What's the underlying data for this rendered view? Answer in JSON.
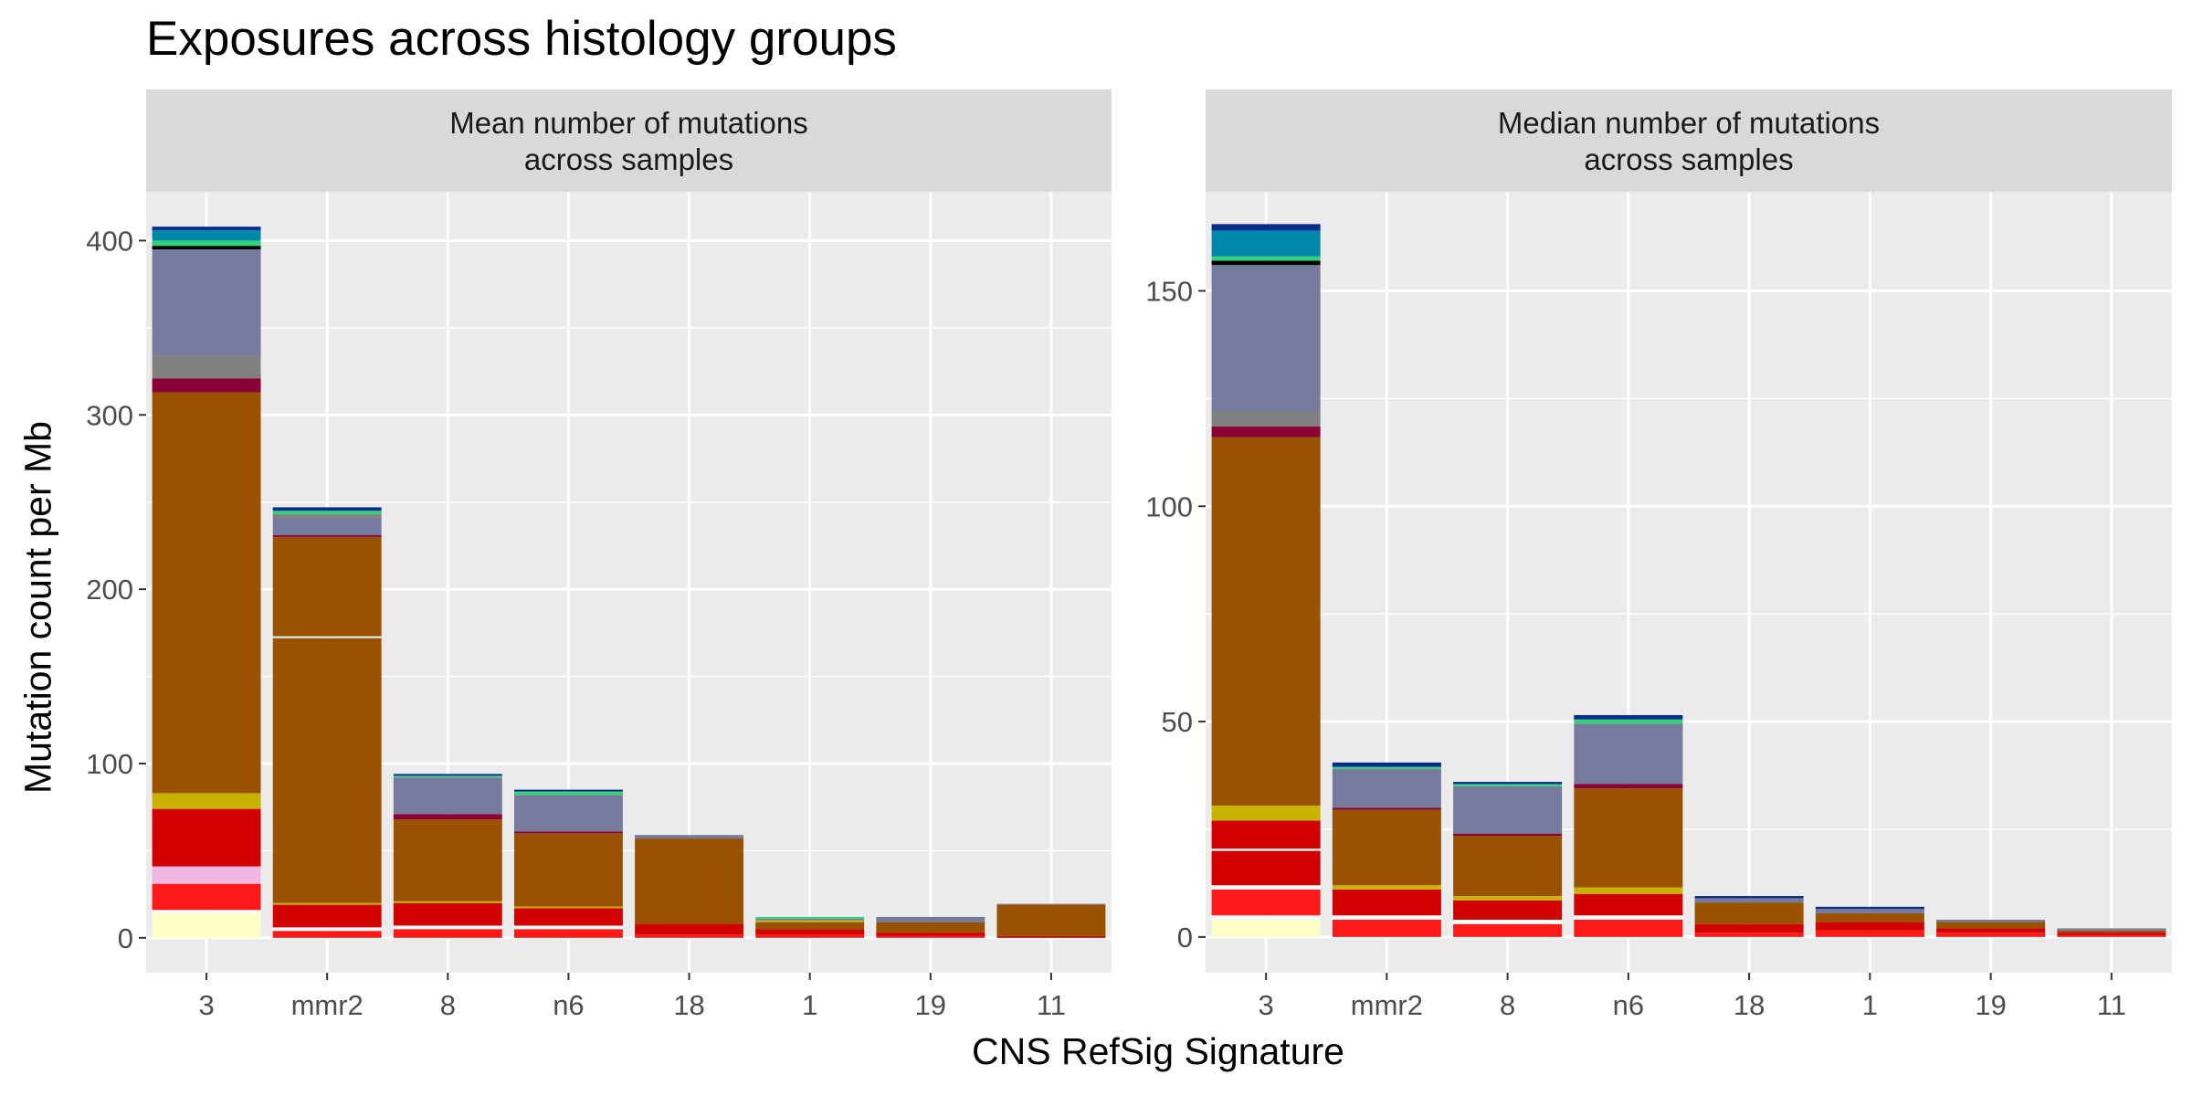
{
  "title": "Exposures across histology groups",
  "ylabel": "Mutation count per Mb",
  "xlabel": "CNS RefSig Signature",
  "chart_data": [
    {
      "type": "bar",
      "stacked": true,
      "strip_lines": [
        "Mean number of mutations",
        "across samples"
      ],
      "categories": [
        "3",
        "mmr2",
        "8",
        "n6",
        "18",
        "1",
        "19",
        "11"
      ],
      "ylim": [
        -20,
        428
      ],
      "yticks": [
        0,
        100,
        200,
        300,
        400
      ],
      "grid": true,
      "stacks": [
        [
          {
            "value": 14,
            "color": "#FFFFC8"
          },
          {
            "value": 2,
            "color": "#FFFFFF"
          },
          {
            "value": 15,
            "color": "#FF1A1A"
          },
          {
            "value": 10,
            "color": "#F2B6E2"
          },
          {
            "value": 33,
            "color": "#D10000"
          },
          {
            "value": 9,
            "color": "#C8B400"
          },
          {
            "value": 230,
            "color": "#995200"
          },
          {
            "value": 8,
            "color": "#8B0037"
          },
          {
            "value": 13,
            "color": "#808080"
          },
          {
            "value": 61,
            "color": "#767A9C"
          },
          {
            "value": 2,
            "color": "#000000"
          },
          {
            "value": 3,
            "color": "#33D17A"
          },
          {
            "value": 6,
            "color": "#0086A8"
          },
          {
            "value": 2,
            "color": "#0A2B8C"
          }
        ],
        [
          {
            "value": 4,
            "color": "#FF1A1A"
          },
          {
            "value": 2,
            "color": "#FFFFFF"
          },
          {
            "value": 13,
            "color": "#D10000"
          },
          {
            "value": 1,
            "color": "#C8B400"
          },
          {
            "value": 152,
            "color": "#995200"
          },
          {
            "value": 1,
            "color": "#FFFFFF"
          },
          {
            "value": 57,
            "color": "#995200"
          },
          {
            "value": 1,
            "color": "#8B0037"
          },
          {
            "value": 10,
            "color": "#767A9C"
          },
          {
            "value": 2,
            "color": "#808080"
          },
          {
            "value": 2,
            "color": "#33D17A"
          },
          {
            "value": 2,
            "color": "#0A2B8C"
          }
        ],
        [
          {
            "value": 5,
            "color": "#FF1A1A"
          },
          {
            "value": 2,
            "color": "#FFFFFF"
          },
          {
            "value": 13,
            "color": "#D10000"
          },
          {
            "value": 1,
            "color": "#C8B400"
          },
          {
            "value": 47,
            "color": "#995200"
          },
          {
            "value": 3,
            "color": "#8B0037"
          },
          {
            "value": 21,
            "color": "#767A9C"
          },
          {
            "value": 1,
            "color": "#33D17A"
          },
          {
            "value": 1,
            "color": "#0A2B8C"
          }
        ],
        [
          {
            "value": 5,
            "color": "#FF1A1A"
          },
          {
            "value": 2,
            "color": "#FFFFFF"
          },
          {
            "value": 10,
            "color": "#D10000"
          },
          {
            "value": 1,
            "color": "#C8B400"
          },
          {
            "value": 42,
            "color": "#995200"
          },
          {
            "value": 1,
            "color": "#8B0037"
          },
          {
            "value": 21,
            "color": "#767A9C"
          },
          {
            "value": 2,
            "color": "#33D17A"
          },
          {
            "value": 1,
            "color": "#0A2B8C"
          }
        ],
        [
          {
            "value": 2,
            "color": "#FF1A1A"
          },
          {
            "value": 6,
            "color": "#D10000"
          },
          {
            "value": 49,
            "color": "#995200"
          },
          {
            "value": 2,
            "color": "#767A9C"
          }
        ],
        [
          {
            "value": 2,
            "color": "#FF1A1A"
          },
          {
            "value": 3,
            "color": "#D10000"
          },
          {
            "value": 4,
            "color": "#995200"
          },
          {
            "value": 1,
            "color": "#C8B400"
          },
          {
            "value": 1,
            "color": "#767A9C"
          },
          {
            "value": 1,
            "color": "#33D17A"
          }
        ],
        [
          {
            "value": 1,
            "color": "#FF1A1A"
          },
          {
            "value": 2,
            "color": "#D10000"
          },
          {
            "value": 6,
            "color": "#995200"
          },
          {
            "value": 3,
            "color": "#767A9C"
          }
        ],
        [
          {
            "value": 1,
            "color": "#D10000"
          },
          {
            "value": 18,
            "color": "#995200"
          },
          {
            "value": 0.5,
            "color": "#767A9C"
          }
        ]
      ]
    },
    {
      "type": "bar",
      "stacked": true,
      "strip_lines": [
        "Median number of mutations",
        "across samples"
      ],
      "categories": [
        "3",
        "mmr2",
        "8",
        "n6",
        "18",
        "1",
        "19",
        "11"
      ],
      "ylim": [
        -8.3,
        173
      ],
      "yticks": [
        0,
        50,
        100,
        150
      ],
      "grid": true,
      "stacks": [
        [
          {
            "value": 4,
            "color": "#FFFFC8"
          },
          {
            "value": 1,
            "color": "#FFFFFF"
          },
          {
            "value": 6,
            "color": "#FF1A1A"
          },
          {
            "value": 1,
            "color": "#FFFFFF"
          },
          {
            "value": 8,
            "color": "#D10000"
          },
          {
            "value": 0.5,
            "color": "#FFFFFF"
          },
          {
            "value": 6.5,
            "color": "#D10000"
          },
          {
            "value": 3.5,
            "color": "#C8B400"
          },
          {
            "value": 85.5,
            "color": "#995200"
          },
          {
            "value": 2.5,
            "color": "#8B0037"
          },
          {
            "value": 3.5,
            "color": "#808080"
          },
          {
            "value": 34,
            "color": "#767A9C"
          },
          {
            "value": 1,
            "color": "#000000"
          },
          {
            "value": 1,
            "color": "#33D17A"
          },
          {
            "value": 6,
            "color": "#0086A8"
          },
          {
            "value": 1.5,
            "color": "#0A2B8C"
          }
        ],
        [
          {
            "value": 4,
            "color": "#FF1A1A"
          },
          {
            "value": 1,
            "color": "#FFFFFF"
          },
          {
            "value": 6,
            "color": "#D10000"
          },
          {
            "value": 1,
            "color": "#C8B400"
          },
          {
            "value": 17.5,
            "color": "#995200"
          },
          {
            "value": 0.5,
            "color": "#8B0037"
          },
          {
            "value": 9,
            "color": "#767A9C"
          },
          {
            "value": 0.5,
            "color": "#33D17A"
          },
          {
            "value": 1,
            "color": "#0A2B8C"
          }
        ],
        [
          {
            "value": 3,
            "color": "#FF1A1A"
          },
          {
            "value": 1,
            "color": "#FFFFFF"
          },
          {
            "value": 4.5,
            "color": "#D10000"
          },
          {
            "value": 1,
            "color": "#C8B400"
          },
          {
            "value": 14,
            "color": "#995200"
          },
          {
            "value": 0.5,
            "color": "#8B0037"
          },
          {
            "value": 11,
            "color": "#767A9C"
          },
          {
            "value": 0.5,
            "color": "#33D17A"
          },
          {
            "value": 0.5,
            "color": "#0A2B8C"
          }
        ],
        [
          {
            "value": 4,
            "color": "#FF1A1A"
          },
          {
            "value": 1,
            "color": "#FFFFFF"
          },
          {
            "value": 5,
            "color": "#D10000"
          },
          {
            "value": 1.5,
            "color": "#C8B400"
          },
          {
            "value": 23,
            "color": "#995200"
          },
          {
            "value": 1,
            "color": "#8B0037"
          },
          {
            "value": 14,
            "color": "#767A9C"
          },
          {
            "value": 1,
            "color": "#33D17A"
          },
          {
            "value": 1,
            "color": "#0A2B8C"
          }
        ],
        [
          {
            "value": 1,
            "color": "#FF1A1A"
          },
          {
            "value": 2,
            "color": "#D10000"
          },
          {
            "value": 5,
            "color": "#995200"
          },
          {
            "value": 1,
            "color": "#767A9C"
          },
          {
            "value": 0.5,
            "color": "#0A2B8C"
          }
        ],
        [
          {
            "value": 1.5,
            "color": "#FF1A1A"
          },
          {
            "value": 2,
            "color": "#D10000"
          },
          {
            "value": 2,
            "color": "#995200"
          },
          {
            "value": 1,
            "color": "#767A9C"
          },
          {
            "value": 0.5,
            "color": "#0A2B8C"
          }
        ],
        [
          {
            "value": 1,
            "color": "#FF1A1A"
          },
          {
            "value": 1,
            "color": "#D10000"
          },
          {
            "value": 1.5,
            "color": "#995200"
          },
          {
            "value": 0.5,
            "color": "#767A9C"
          }
        ],
        [
          {
            "value": 0.5,
            "color": "#FF1A1A"
          },
          {
            "value": 0.5,
            "color": "#D10000"
          },
          {
            "value": 0.5,
            "color": "#995200"
          },
          {
            "value": 0.5,
            "color": "#767A9C"
          }
        ]
      ]
    }
  ]
}
